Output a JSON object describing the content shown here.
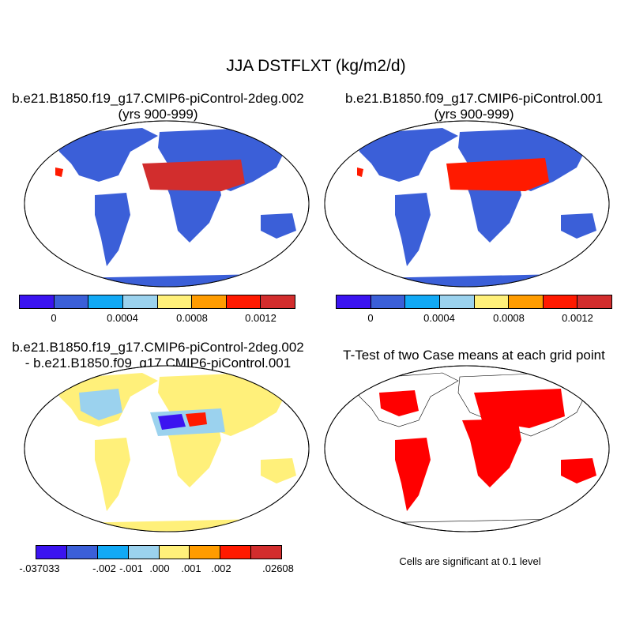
{
  "main_title": "JJA DSTFLXT (kg/m2/d)",
  "panels": [
    {
      "title_line1": "b.e21.B1850.f19_g17.CMIP6-piControl-2deg.002",
      "title_line2": "(yrs 900-999)",
      "fill": "#3b5fd8"
    },
    {
      "title_line1": "b.e21.B1850.f09_g17.CMIP6-piControl.001",
      "title_line2": "(yrs 900-999)",
      "fill": "#3b5fd8"
    },
    {
      "title_line1": "b.e21.B1850.f19_g17.CMIP6-piControl-2deg.002",
      "title_line2": "- b.e21.B1850.f09_g17.CMIP6-piControl.001",
      "fill": "#fff07a"
    },
    {
      "title_line1": "T-Test of two Case means at each grid point",
      "title_line2": "",
      "fill": "#ff0000"
    }
  ],
  "colorbars": {
    "colors": [
      "#3b14f0",
      "#3b5fd8",
      "#12a9f5",
      "#9bd2ee",
      "#fff07a",
      "#ff9c00",
      "#ff1a00",
      "#d22d2d"
    ],
    "case_ticks": [
      "0",
      "0.0004",
      "0.0008",
      "0.0012"
    ],
    "diff_ticks": [
      "-.037033",
      "-.002",
      "-.001",
      ".000",
      ".001",
      ".002",
      ".02608"
    ]
  },
  "significance_note": "Cells are significant at 0.1 level"
}
